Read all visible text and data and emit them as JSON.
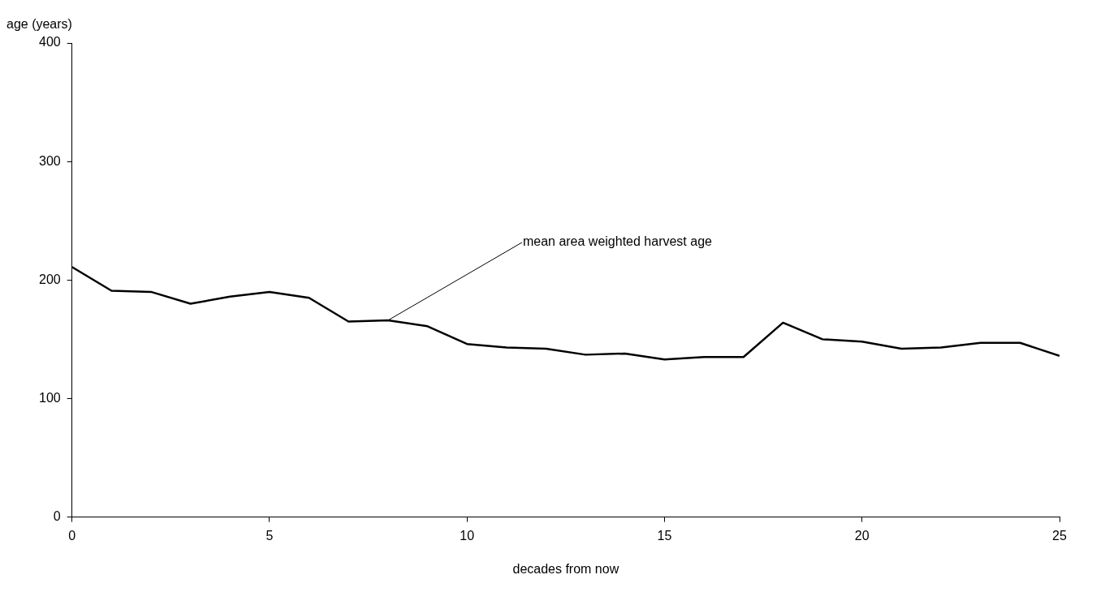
{
  "chart_data": {
    "type": "line",
    "xlabel": "decades from now",
    "ylabel": "age (years)",
    "x": [
      0,
      1,
      2,
      3,
      4,
      5,
      6,
      7,
      8,
      9,
      10,
      11,
      12,
      13,
      14,
      15,
      16,
      17,
      18,
      19,
      20,
      21,
      22,
      23,
      24,
      25
    ],
    "series": [
      {
        "color": "#000000",
        "values": [
          211,
          191,
          190,
          180,
          186,
          190,
          185,
          165,
          166,
          161,
          146,
          143,
          142,
          137,
          138,
          133,
          135,
          135,
          164,
          150,
          148,
          142,
          143,
          147,
          147,
          136
        ]
      }
    ],
    "xlim": [
      0,
      25
    ],
    "xticks": [
      0,
      5,
      10,
      15,
      20,
      25
    ],
    "ylim": [
      0,
      400
    ],
    "yticks": [
      0,
      100,
      200,
      300,
      400
    ],
    "grid": false,
    "legend": false,
    "marker": "none",
    "line_style": "solid",
    "annotations": [
      {
        "text": "mean area weighted harvest age",
        "x": 8,
        "y": 166
      }
    ]
  }
}
